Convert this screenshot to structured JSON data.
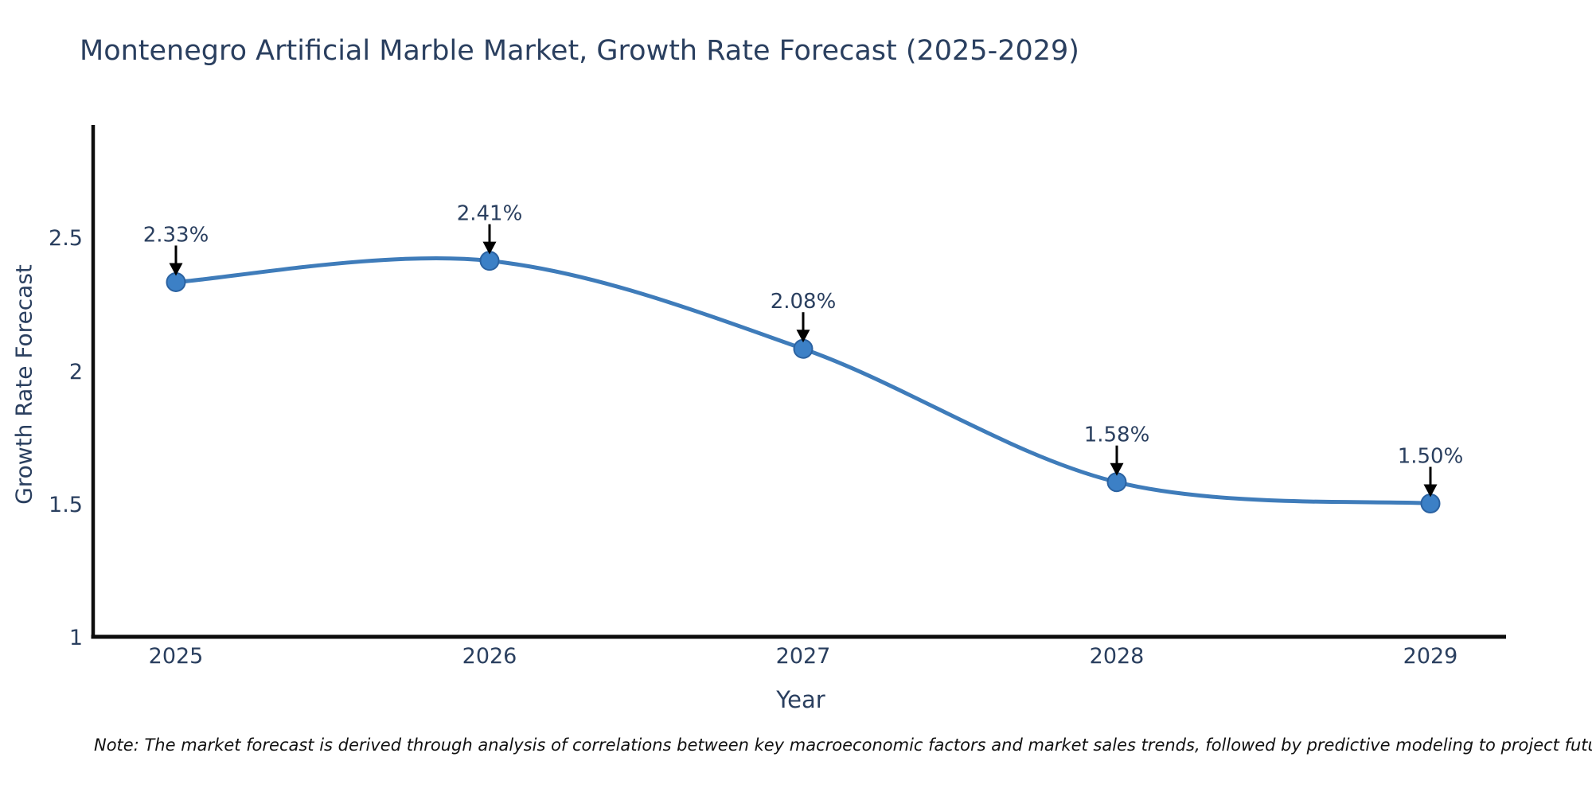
{
  "page": {
    "background": "#ffffff"
  },
  "chart_data": {
    "type": "line",
    "title": "Montenegro Artificial Marble Market, Growth Rate Forecast (2025-2029)",
    "xlabel": "Year",
    "ylabel": "Growth Rate Forecast",
    "categories": [
      "2025",
      "2026",
      "2027",
      "2028",
      "2029"
    ],
    "series": [
      {
        "name": "Growth Rate Forecast",
        "values": [
          2.33,
          2.41,
          2.08,
          1.58,
          1.5
        ]
      }
    ],
    "point_labels": [
      "2.33%",
      "2.41%",
      "2.08%",
      "1.58%",
      "1.50%"
    ],
    "y_ticks": [
      "2.5",
      "2",
      "1.5",
      "1"
    ],
    "y_tick_values": [
      2.5,
      2.0,
      1.5,
      1.0
    ],
    "ylim": [
      1.0,
      2.92
    ],
    "grid": false,
    "legend": "none",
    "line_color": "#3f7cba",
    "marker_color": "#3c80c6",
    "marker_edge_color": "#2b62a1",
    "arrow_color": "#000000",
    "text_color": "#2a3f5f",
    "axis_color": "#0d0d0d",
    "note": "Note: The market forecast is derived through analysis of correlations between key macroeconomic factors and market sales trends, followed by predictive modeling to project future sales"
  }
}
